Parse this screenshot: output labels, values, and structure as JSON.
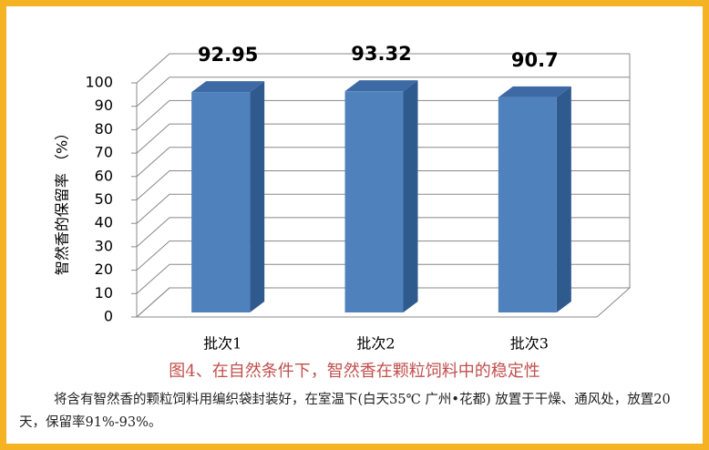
{
  "chart_data": {
    "type": "bar3d",
    "y_label": "智然香的保留率 （%）",
    "categories": [
      "批次1",
      "批次2",
      "批次3"
    ],
    "values": [
      92.95,
      93.32,
      90.7
    ],
    "color": "#4f81bd",
    "ylim": [
      0,
      100
    ],
    "yticks": [
      0,
      10,
      20,
      30,
      40,
      50,
      60,
      70,
      80,
      90,
      100
    ],
    "grid": true
  },
  "caption": "图4、在自然条件下，智然香在颗粒饲料中的稳定性",
  "description": "将含有智然香的颗粒饲料用编织袋封装好，在室温下(白天35℃ 广州•花都) 放置于干燥、通风处，放置20天，保留率91%-93%。"
}
